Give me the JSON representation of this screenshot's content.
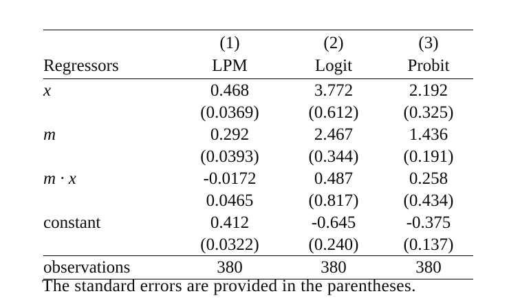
{
  "page": {
    "background_color": "#ffffff",
    "text_color": "#0b0b0b",
    "rule_color": "#000000"
  },
  "table": {
    "header_numbers": [
      "(1)",
      "(2)",
      "(3)"
    ],
    "header_names": [
      "Regressors",
      "LPM",
      "Logit",
      "Probit"
    ],
    "rows": [
      {
        "label": "x",
        "cells": [
          "0.468",
          "3.772",
          "2.192"
        ]
      },
      {
        "label": "",
        "cells": [
          "(0.0369)",
          "(0.612)",
          "(0.325)"
        ]
      },
      {
        "label": "m",
        "cells": [
          "0.292",
          "2.467",
          "1.436"
        ]
      },
      {
        "label": "",
        "cells": [
          "(0.0393)",
          "(0.344)",
          "(0.191)"
        ]
      },
      {
        "label": "m · x",
        "cells": [
          "-0.0172",
          "0.487",
          "0.258"
        ]
      },
      {
        "label": "",
        "cells": [
          "0.0465",
          "(0.817)",
          "(0.434)"
        ]
      },
      {
        "label": "constant",
        "cells": [
          "0.412",
          "-0.645",
          "-0.375"
        ]
      },
      {
        "label": "",
        "cells": [
          "(0.0322)",
          "(0.240)",
          "(0.137)"
        ]
      }
    ],
    "observations": {
      "label": "observations",
      "cells": [
        "380",
        "380",
        "380"
      ]
    },
    "footer_note": "The standard errors are provided in the parentheses."
  }
}
